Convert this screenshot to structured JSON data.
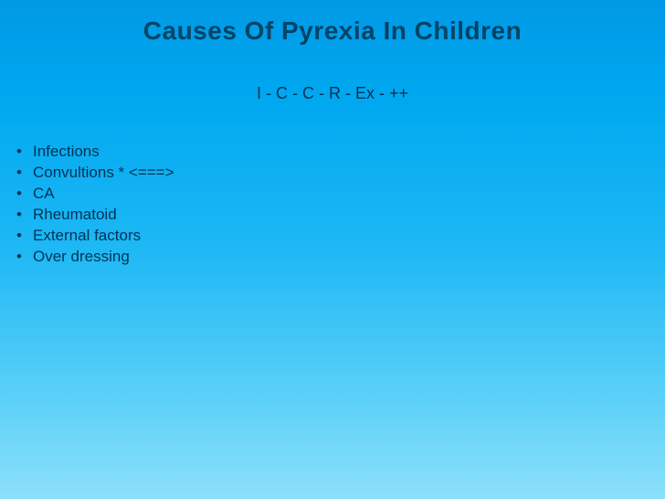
{
  "slide": {
    "title": "Causes Of Pyrexia In Children",
    "subtitle": "I - C - C - R - Ex - ++",
    "items": [
      "Infections",
      "Convultions  * <===>",
      "CA",
      "Rheumatoid",
      "External factors",
      "Over dressing"
    ],
    "styling": {
      "background_gradient_top": "#0099e6",
      "background_gradient_bottom": "#8ce0fa",
      "title_color": "#004466",
      "text_color": "#003355",
      "title_fontsize": 28,
      "subtitle_fontsize": 18,
      "list_fontsize": 17,
      "font_family": "Verdana"
    }
  }
}
